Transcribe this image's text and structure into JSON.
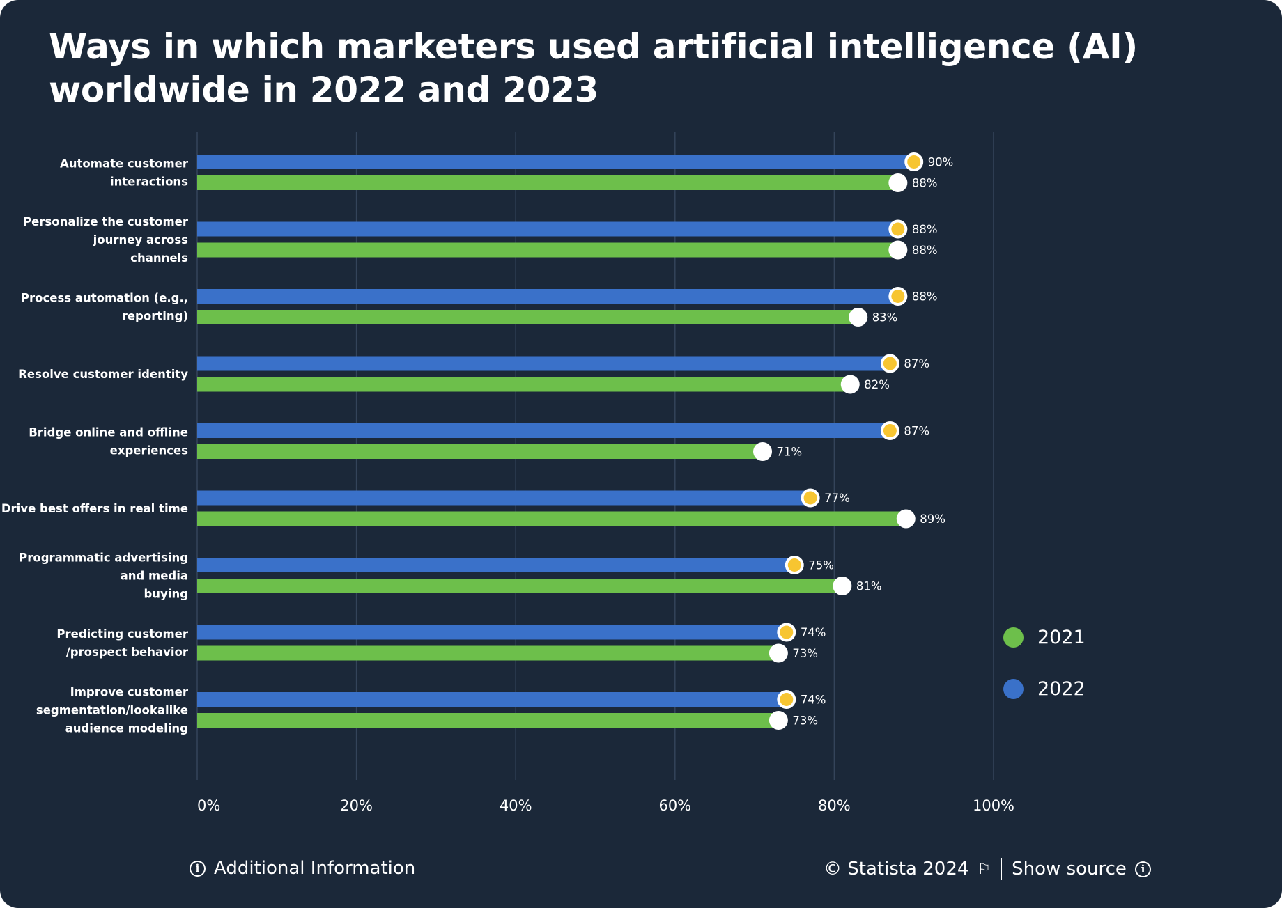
{
  "title": "Ways in which marketers used artificial intelligence (AI) worldwide in 2022 and 2023",
  "colors": {
    "background": "#1b2839",
    "series_2022": "#3a71c9",
    "series_2021": "#6dbf4b",
    "marker_2022": "#f7c531",
    "marker_2021": "#ffffff",
    "grid": "#34445a"
  },
  "legend": [
    {
      "label": "2021",
      "color": "#6dbf4b"
    },
    {
      "label": "2022",
      "color": "#3a71c9"
    }
  ],
  "footer": {
    "additional_info": "Additional Information",
    "copyright": "© Statista 2024",
    "show_source": "Show source"
  },
  "chart_data": {
    "type": "bar",
    "orientation": "horizontal",
    "categories": [
      [
        "Automate customer",
        "interactions"
      ],
      [
        "Personalize the customer",
        "journey across",
        "channels"
      ],
      [
        "Process automation (e.g.,",
        "reporting)"
      ],
      [
        "Resolve customer identity"
      ],
      [
        "Bridge online and offline",
        "experiences"
      ],
      [
        "Drive best offers in real time"
      ],
      [
        "Programmatic advertising",
        "and media",
        "buying"
      ],
      [
        "Predicting customer",
        "/prospect behavior"
      ],
      [
        "Improve customer",
        "segmentation/lookalike",
        "audience modeling"
      ]
    ],
    "series": [
      {
        "name": "2022",
        "values": [
          90,
          88,
          88,
          87,
          87,
          77,
          75,
          74,
          74
        ],
        "labels": [
          "90%",
          "88%",
          "88%",
          "87%",
          "87%",
          "77%",
          "75%",
          "74%",
          "74%"
        ]
      },
      {
        "name": "2021",
        "values": [
          88,
          88,
          83,
          82,
          71,
          89,
          81,
          73,
          73
        ],
        "labels": [
          "88%",
          "88%",
          "83%",
          "82%",
          "71%",
          "89%",
          "81%",
          "73%",
          "73%"
        ]
      }
    ],
    "xlim": [
      0,
      100
    ],
    "xticks": [
      "0%",
      "20%",
      "40%",
      "60%",
      "80%",
      "100%"
    ],
    "grid": true,
    "legend_position": "right"
  }
}
